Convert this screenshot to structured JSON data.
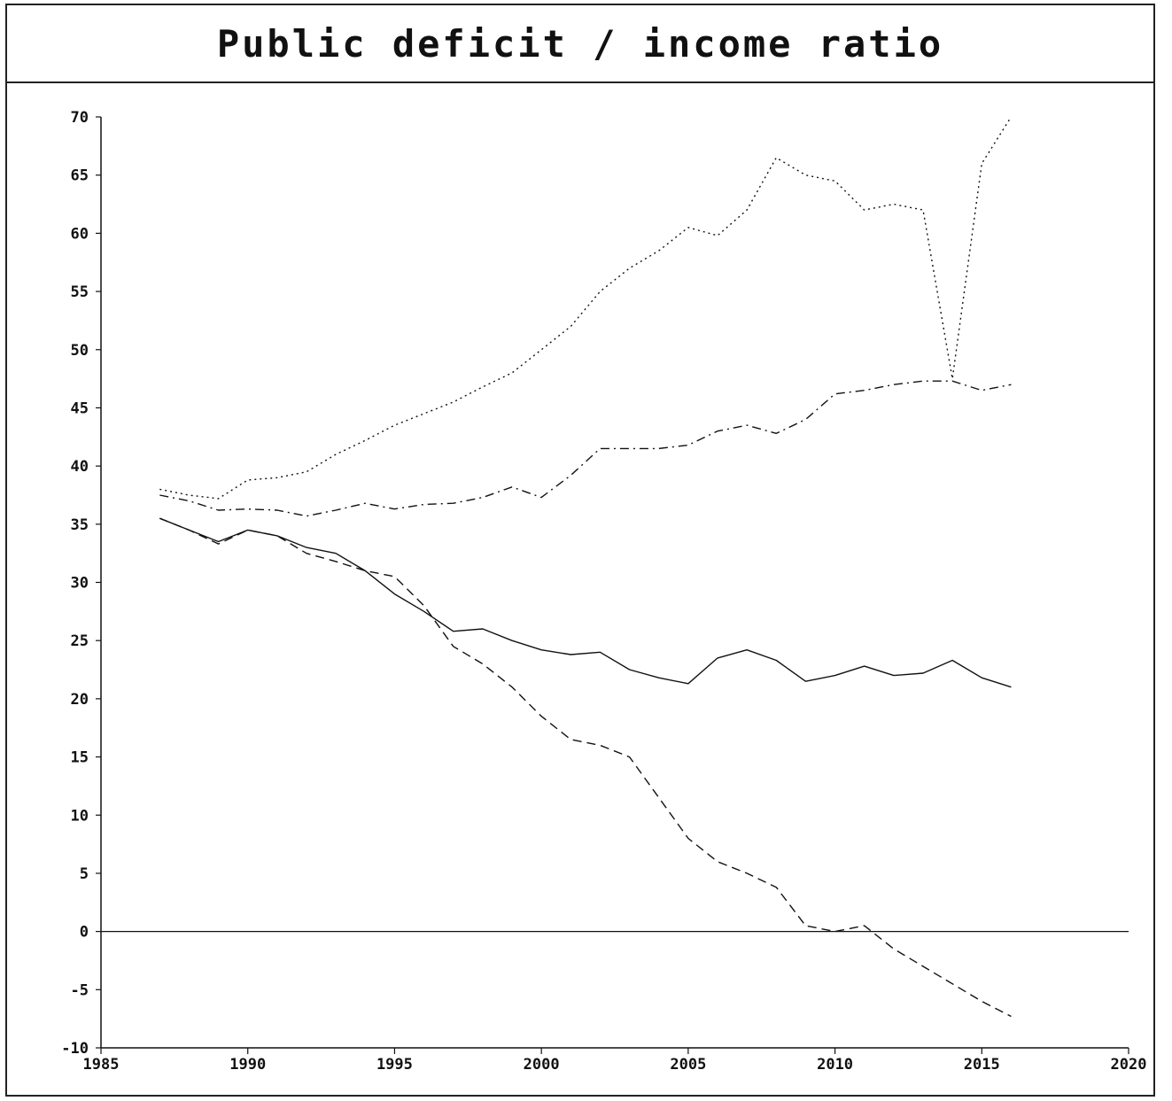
{
  "title": "Public deficit / income ratio",
  "chart_data": {
    "type": "line",
    "title": "Public deficit / income ratio",
    "xlabel": "",
    "ylabel": "",
    "xlim": [
      1985,
      2020
    ],
    "ylim": [
      -10,
      70
    ],
    "x_ticks": [
      1985,
      1990,
      1995,
      2000,
      2005,
      2010,
      2015,
      2020
    ],
    "y_ticks": [
      -10,
      -5,
      0,
      5,
      10,
      15,
      20,
      25,
      30,
      35,
      40,
      45,
      50,
      55,
      60,
      65,
      70
    ],
    "grid": false,
    "legend": "none",
    "reference_line_y": 0,
    "x": [
      1987,
      1988,
      1989,
      1990,
      1991,
      1992,
      1993,
      1994,
      1995,
      1996,
      1997,
      1998,
      1999,
      2000,
      2001,
      2002,
      2003,
      2004,
      2005,
      2006,
      2007,
      2008,
      2009,
      2010,
      2011,
      2012,
      2013,
      2014,
      2015,
      2016
    ],
    "series": [
      {
        "style": "solid",
        "values": [
          35.5,
          34.5,
          33.5,
          34.5,
          34.0,
          33.0,
          32.5,
          31.0,
          29.0,
          27.5,
          25.8,
          26.0,
          25.0,
          24.2,
          23.8,
          24.0,
          22.5,
          21.8,
          21.3,
          23.5,
          24.2,
          23.3,
          21.5,
          22.0,
          22.8,
          22.0,
          22.2,
          23.3,
          21.8,
          21.0
        ]
      },
      {
        "style": "dashed",
        "values": [
          35.5,
          34.5,
          33.3,
          34.5,
          34.0,
          32.5,
          31.8,
          31.0,
          30.5,
          28.0,
          24.5,
          23.0,
          21.0,
          18.5,
          16.5,
          16.0,
          15.0,
          11.5,
          8.0,
          6.0,
          5.0,
          3.8,
          0.5,
          0.0,
          0.5,
          -1.5,
          -3.0,
          -4.5,
          -6.0,
          -7.3
        ]
      },
      {
        "style": "dotted",
        "values": [
          38.0,
          37.5,
          37.2,
          38.8,
          39.0,
          39.5,
          41.0,
          42.2,
          43.5,
          44.5,
          45.5,
          46.8,
          48.0,
          50.0,
          52.0,
          55.0,
          57.0,
          58.5,
          60.5,
          59.8,
          62.0,
          66.5,
          65.0,
          64.5,
          62.0,
          62.5,
          62.0,
          47.5,
          66.0,
          70.0
        ]
      },
      {
        "style": "dashdot",
        "values": [
          37.5,
          37.0,
          36.2,
          36.3,
          36.2,
          35.7,
          36.2,
          36.8,
          36.3,
          36.7,
          36.8,
          37.3,
          38.2,
          37.3,
          39.2,
          41.5,
          41.5,
          41.5,
          41.8,
          43.0,
          43.5,
          42.8,
          44.0,
          46.2,
          46.5,
          47.0,
          47.3,
          47.3,
          46.5,
          47.0
        ]
      }
    ]
  }
}
